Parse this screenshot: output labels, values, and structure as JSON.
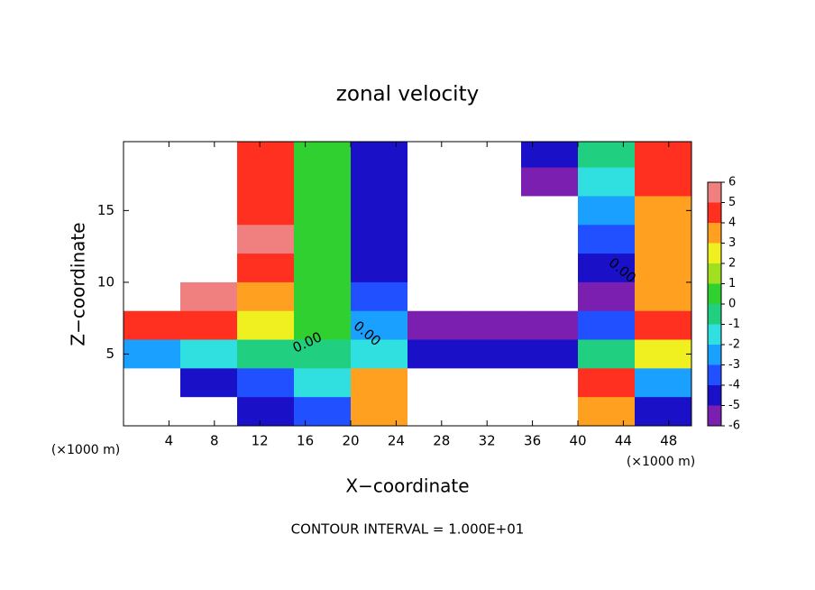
{
  "chart_data": {
    "type": "contourf",
    "title": "zonal velocity",
    "xlabel": "X−coordinate",
    "ylabel": "Z−coordinate",
    "x_unit_left": "(×1000 m)",
    "x_unit_right": "(×1000 m)",
    "footer": "CONTOUR INTERVAL = 1.000E+01",
    "contour_labels": [
      "0.00",
      "0.00",
      "0.00"
    ],
    "xlim": [
      0,
      50
    ],
    "ylim": [
      0,
      19.8
    ],
    "xticks": [
      4,
      8,
      12,
      16,
      20,
      24,
      28,
      32,
      36,
      40,
      44,
      48
    ],
    "yticks": [
      5,
      10,
      15
    ],
    "x": [
      2.5,
      7.5,
      12.5,
      17.5,
      22.5,
      27.5,
      32.5,
      37.5,
      42.5,
      47.5
    ],
    "y": [
      19,
      17,
      15,
      13,
      11,
      9,
      7,
      5,
      3,
      1
    ],
    "z": [
      [
        10,
        10,
        5,
        1,
        -4,
        -10,
        -10,
        -4,
        0,
        5
      ],
      [
        10,
        10,
        5,
        1,
        -4,
        -10,
        -10,
        -5,
        -1,
        5
      ],
      [
        10,
        10,
        5,
        1,
        -4,
        -10,
        -10,
        -10,
        -2,
        4
      ],
      [
        10,
        10,
        6,
        1,
        -4,
        -10,
        -10,
        -10,
        -3,
        4
      ],
      [
        10,
        10,
        5,
        1,
        -4,
        -10,
        -10,
        -10,
        -4,
        4
      ],
      [
        8,
        6,
        4,
        1,
        -3,
        -10,
        -10,
        -10,
        -5,
        4
      ],
      [
        5,
        5,
        3,
        1,
        -2,
        -5,
        -5,
        -5,
        -3,
        5
      ],
      [
        -2,
        -1,
        0,
        0,
        -1,
        -4,
        -4,
        -4,
        0,
        3
      ],
      [
        -10,
        -4,
        -3,
        -1,
        4,
        10,
        10,
        10,
        5,
        -2
      ],
      [
        -10,
        -10,
        -4,
        -3,
        4,
        8,
        10,
        10,
        4,
        -4
      ]
    ],
    "levels": [
      -6,
      -5,
      -4,
      -3,
      -2,
      -1,
      0,
      1,
      2,
      3,
      4,
      5,
      6
    ],
    "colors": [
      "#7a1fb0",
      "#1a10c8",
      "#2050ff",
      "#1aa0ff",
      "#30e0e0",
      "#20d080",
      "#30d030",
      "#a0e020",
      "#f0f020",
      "#ffa020",
      "#ff3020",
      "#f08080"
    ],
    "out_of_range_color": "#ffffff"
  }
}
